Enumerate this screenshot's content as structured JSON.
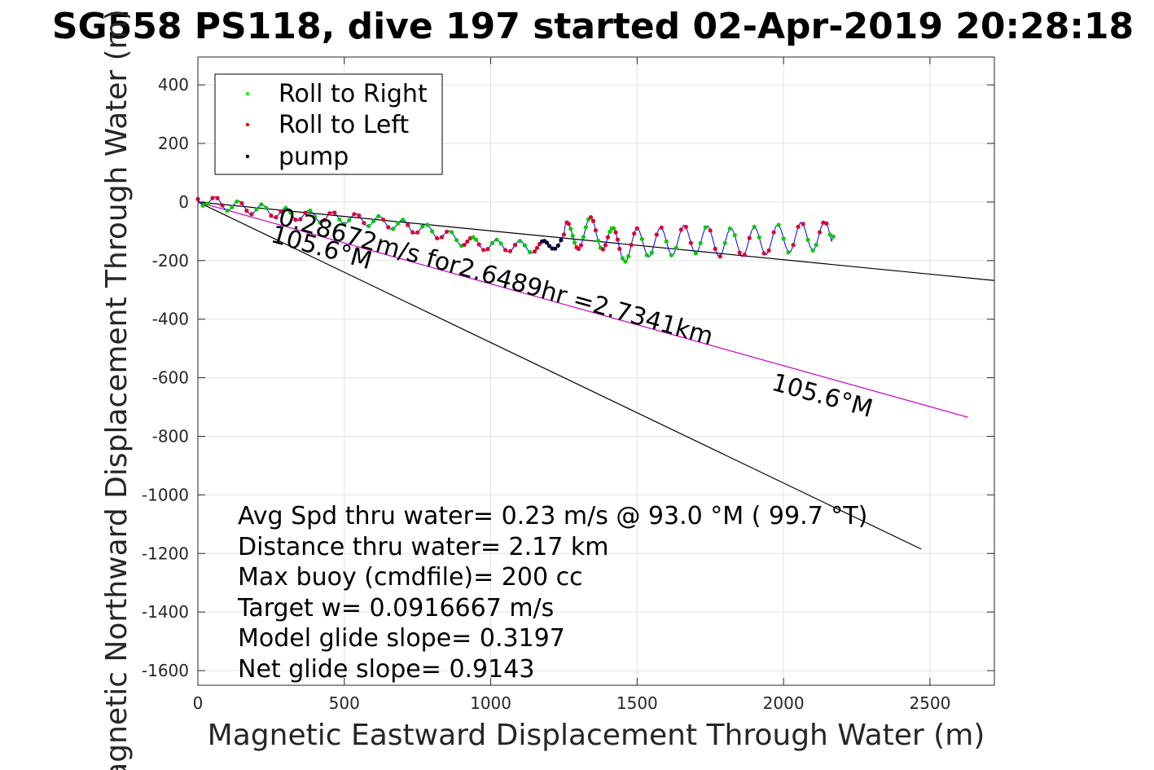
{
  "chart_data": {
    "type": "line",
    "title": "SG558 PS118, dive 197 started 02-Apr-2019 20:28:18",
    "xlabel": "Magnetic Eastward Displacement Through Water (m)",
    "ylabel": "Magnetic Northward Displacement Through Water (m)",
    "xlim": [
      0,
      2720
    ],
    "ylim": [
      -1650,
      495
    ],
    "xticks": [
      0,
      500,
      1000,
      1500,
      2000,
      2500
    ],
    "yticks": [
      400,
      200,
      0,
      -200,
      -400,
      -600,
      -800,
      -1000,
      -1200,
      -1400,
      -1600
    ],
    "grid": true,
    "legend": {
      "placement": "top-left",
      "entries": [
        {
          "label": "Roll to Right",
          "color": "#00ff00",
          "marker": "dot"
        },
        {
          "label": "Roll to Left",
          "color": "#ff0000",
          "marker": "dot"
        },
        {
          "label": "pump",
          "color": "#000000",
          "marker": "dot"
        }
      ]
    },
    "track": {
      "color": "#0000ff",
      "points": [
        [
          0,
          10
        ],
        [
          100,
          -10
        ],
        [
          200,
          -25
        ],
        [
          300,
          -40
        ],
        [
          400,
          -50
        ],
        [
          500,
          -55
        ],
        [
          600,
          -65
        ],
        [
          700,
          -80
        ],
        [
          800,
          -100
        ],
        [
          900,
          -130
        ],
        [
          960,
          -145
        ],
        [
          1050,
          -150
        ],
        [
          1150,
          -155
        ],
        [
          1200,
          -150
        ],
        [
          1260,
          -120
        ],
        [
          1300,
          -110
        ],
        [
          1350,
          -100
        ],
        [
          1400,
          -120
        ],
        [
          1440,
          -160
        ],
        [
          1500,
          -140
        ],
        [
          1600,
          -135
        ],
        [
          1700,
          -125
        ],
        [
          1800,
          -140
        ],
        [
          1900,
          -135
        ],
        [
          2000,
          -125
        ],
        [
          2100,
          -115
        ],
        [
          2170,
          -118
        ]
      ]
    },
    "lines": [
      {
        "name": "",
        "color": "#000000",
        "points": [
          [
            0,
            0
          ],
          [
            2720,
            -268
          ]
        ]
      },
      {
        "name": "",
        "color": "#000000",
        "points": [
          [
            0,
            0
          ],
          [
            2470,
            -1185
          ]
        ]
      },
      {
        "name": "",
        "color": "#cc00cc",
        "points": [
          [
            0,
            0
          ],
          [
            2630,
            -735
          ]
        ]
      }
    ],
    "annotations": [
      {
        "text": "0.28672m/s for2.6489hr =2.7341km",
        "x": 270,
        "y": -75,
        "angle_deg": 15.6
      },
      {
        "text": "105.6°M",
        "x": 245,
        "y": -135,
        "angle_deg": 15.6
      },
      {
        "text": "105.6°M",
        "x": 1955,
        "y": -640,
        "angle_deg": 15.6
      }
    ],
    "stats": [
      "Avg Spd thru water=  0.23 m/s @  93.0 °M ( 99.7 °T)",
      "Distance thru water=  2.17 km",
      "Max buoy (cmdfile)= 200 cc",
      "Target w= 0.0916667 m/s",
      "Model glide slope= 0.3197",
      "Net glide slope= 0.9143"
    ]
  }
}
